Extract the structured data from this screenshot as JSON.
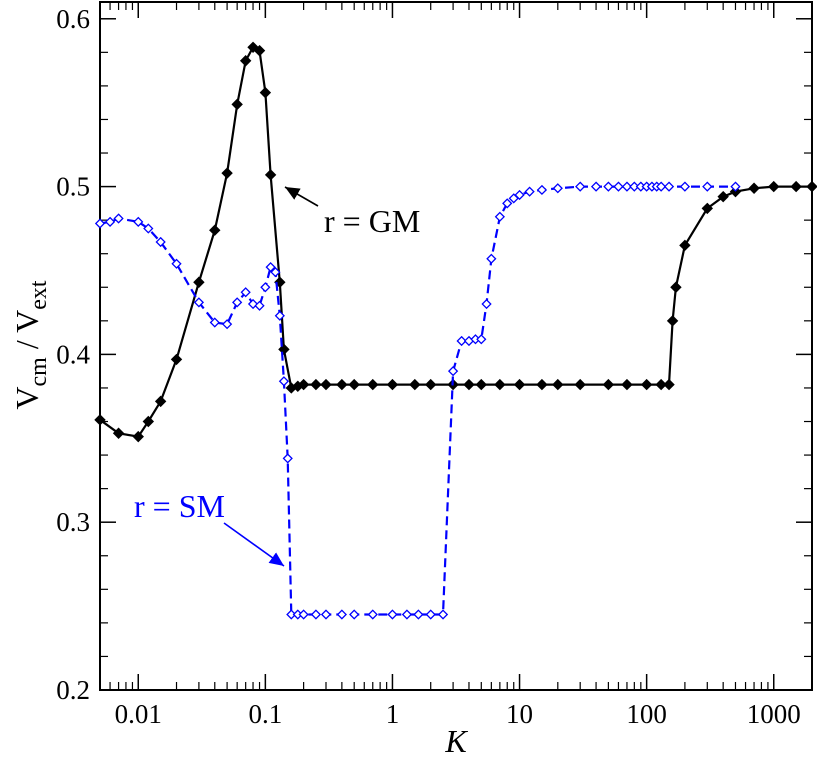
{
  "chart_data": {
    "type": "line",
    "title": "",
    "xlabel": "K",
    "ylabel_main": "V",
    "ylabel_sub1": "cm",
    "ylabel_sep": " / V",
    "ylabel_sub2": "ext",
    "xscale": "log",
    "xlim": [
      0.005,
      2000
    ],
    "ylim": [
      0.2,
      0.61
    ],
    "x_ticks": [
      0.01,
      0.1,
      1,
      10,
      100,
      1000
    ],
    "x_tick_labels": [
      "0.01",
      "0.1",
      "1",
      "10",
      "100",
      "1000"
    ],
    "y_ticks": [
      0.2,
      0.3,
      0.4,
      0.5,
      0.6
    ],
    "y_tick_labels": [
      "0.2",
      "0.3",
      "0.4",
      "0.5",
      "0.6"
    ],
    "grid": false,
    "series": [
      {
        "name": "r = GM",
        "color": "#000000",
        "line": "solid",
        "marker": "filled-diamond",
        "points": [
          [
            0.005,
            0.361
          ],
          [
            0.007,
            0.353
          ],
          [
            0.01,
            0.351
          ],
          [
            0.012,
            0.36
          ],
          [
            0.015,
            0.372
          ],
          [
            0.02,
            0.397
          ],
          [
            0.03,
            0.443
          ],
          [
            0.04,
            0.474
          ],
          [
            0.05,
            0.508
          ],
          [
            0.06,
            0.549
          ],
          [
            0.07,
            0.575
          ],
          [
            0.08,
            0.583
          ],
          [
            0.09,
            0.581
          ],
          [
            0.1,
            0.556
          ],
          [
            0.11,
            0.507
          ],
          [
            0.13,
            0.443
          ],
          [
            0.14,
            0.403
          ],
          [
            0.16,
            0.38
          ],
          [
            0.18,
            0.381
          ],
          [
            0.2,
            0.382
          ],
          [
            0.25,
            0.382
          ],
          [
            0.3,
            0.382
          ],
          [
            0.4,
            0.382
          ],
          [
            0.5,
            0.382
          ],
          [
            0.7,
            0.382
          ],
          [
            1,
            0.382
          ],
          [
            1.5,
            0.382
          ],
          [
            2,
            0.382
          ],
          [
            3,
            0.382
          ],
          [
            4,
            0.382
          ],
          [
            5,
            0.382
          ],
          [
            7,
            0.382
          ],
          [
            10,
            0.382
          ],
          [
            15,
            0.382
          ],
          [
            20,
            0.382
          ],
          [
            30,
            0.382
          ],
          [
            50,
            0.382
          ],
          [
            70,
            0.382
          ],
          [
            100,
            0.382
          ],
          [
            130,
            0.382
          ],
          [
            150,
            0.382
          ],
          [
            160,
            0.42
          ],
          [
            170,
            0.44
          ],
          [
            200,
            0.465
          ],
          [
            300,
            0.487
          ],
          [
            400,
            0.494
          ],
          [
            500,
            0.497
          ],
          [
            700,
            0.499
          ],
          [
            1000,
            0.5
          ],
          [
            1500,
            0.5
          ],
          [
            2000,
            0.5
          ]
        ]
      },
      {
        "name": "r = SM",
        "color": "#0000ff",
        "line": "dashed",
        "marker": "open-diamond",
        "points": [
          [
            0.005,
            0.478
          ],
          [
            0.006,
            0.479
          ],
          [
            0.007,
            0.481
          ],
          [
            0.01,
            0.479
          ],
          [
            0.012,
            0.475
          ],
          [
            0.015,
            0.467
          ],
          [
            0.02,
            0.454
          ],
          [
            0.03,
            0.431
          ],
          [
            0.04,
            0.419
          ],
          [
            0.05,
            0.418
          ],
          [
            0.06,
            0.431
          ],
          [
            0.07,
            0.437
          ],
          [
            0.08,
            0.43
          ],
          [
            0.09,
            0.429
          ],
          [
            0.1,
            0.44
          ],
          [
            0.11,
            0.452
          ],
          [
            0.12,
            0.449
          ],
          [
            0.13,
            0.423
          ],
          [
            0.14,
            0.384
          ],
          [
            0.15,
            0.338
          ],
          [
            0.16,
            0.245
          ],
          [
            0.18,
            0.245
          ],
          [
            0.2,
            0.245
          ],
          [
            0.25,
            0.245
          ],
          [
            0.3,
            0.245
          ],
          [
            0.4,
            0.245
          ],
          [
            0.5,
            0.245
          ],
          [
            0.7,
            0.245
          ],
          [
            1,
            0.245
          ],
          [
            1.3,
            0.245
          ],
          [
            1.6,
            0.245
          ],
          [
            2,
            0.245
          ],
          [
            2.5,
            0.245
          ],
          [
            3,
            0.39
          ],
          [
            3.5,
            0.408
          ],
          [
            4,
            0.408
          ],
          [
            4.5,
            0.409
          ],
          [
            5,
            0.409
          ],
          [
            5.5,
            0.43
          ],
          [
            6,
            0.457
          ],
          [
            7,
            0.482
          ],
          [
            8,
            0.49
          ],
          [
            9,
            0.493
          ],
          [
            10,
            0.495
          ],
          [
            12,
            0.497
          ],
          [
            15,
            0.498
          ],
          [
            20,
            0.499
          ],
          [
            30,
            0.5
          ],
          [
            40,
            0.5
          ],
          [
            50,
            0.5
          ],
          [
            60,
            0.5
          ],
          [
            70,
            0.5
          ],
          [
            80,
            0.5
          ],
          [
            90,
            0.5
          ],
          [
            100,
            0.5
          ],
          [
            110,
            0.5
          ],
          [
            120,
            0.5
          ],
          [
            130,
            0.5
          ],
          [
            150,
            0.5
          ],
          [
            200,
            0.5
          ],
          [
            300,
            0.5
          ],
          [
            500,
            0.5
          ]
        ]
      }
    ],
    "annotations": [
      {
        "text": "r = GM",
        "color": "#000000",
        "arrow_to": [
          0.13,
          0.5
        ]
      },
      {
        "text": "r = SM",
        "color": "#0000ff",
        "arrow_to": [
          0.15,
          0.272
        ]
      }
    ]
  }
}
